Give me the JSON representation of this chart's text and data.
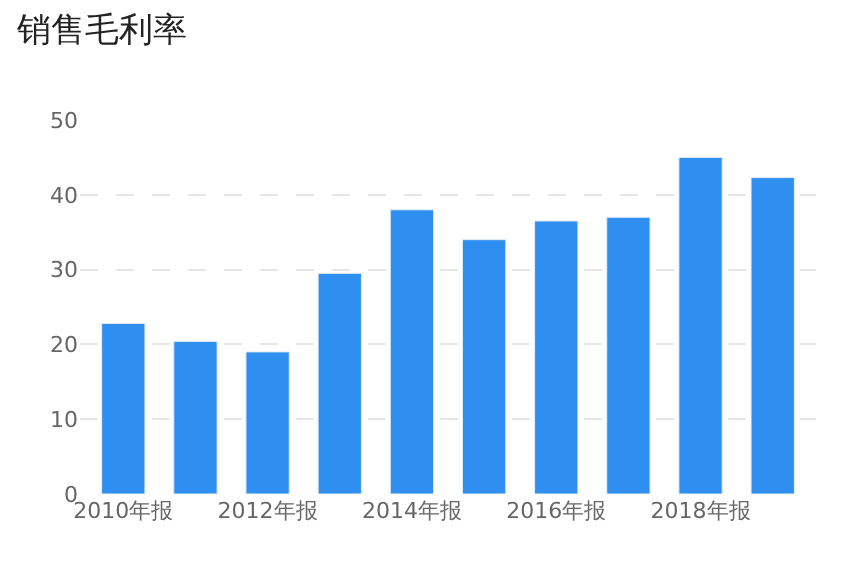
{
  "chart_data": {
    "type": "bar",
    "title": "销售毛利率",
    "categories": [
      "2010年报",
      null,
      "2012年报",
      null,
      "2014年报",
      null,
      "2016年报",
      null,
      "2018年报",
      null
    ],
    "values": [
      22.8,
      20.4,
      19.0,
      29.5,
      38.0,
      34.0,
      36.5,
      37.0,
      45.0,
      42.3
    ],
    "color": "#2f8ff0",
    "ylim": [
      0,
      50
    ],
    "yticks": [
      0,
      10,
      20,
      30,
      40,
      50
    ],
    "grid": "y"
  }
}
